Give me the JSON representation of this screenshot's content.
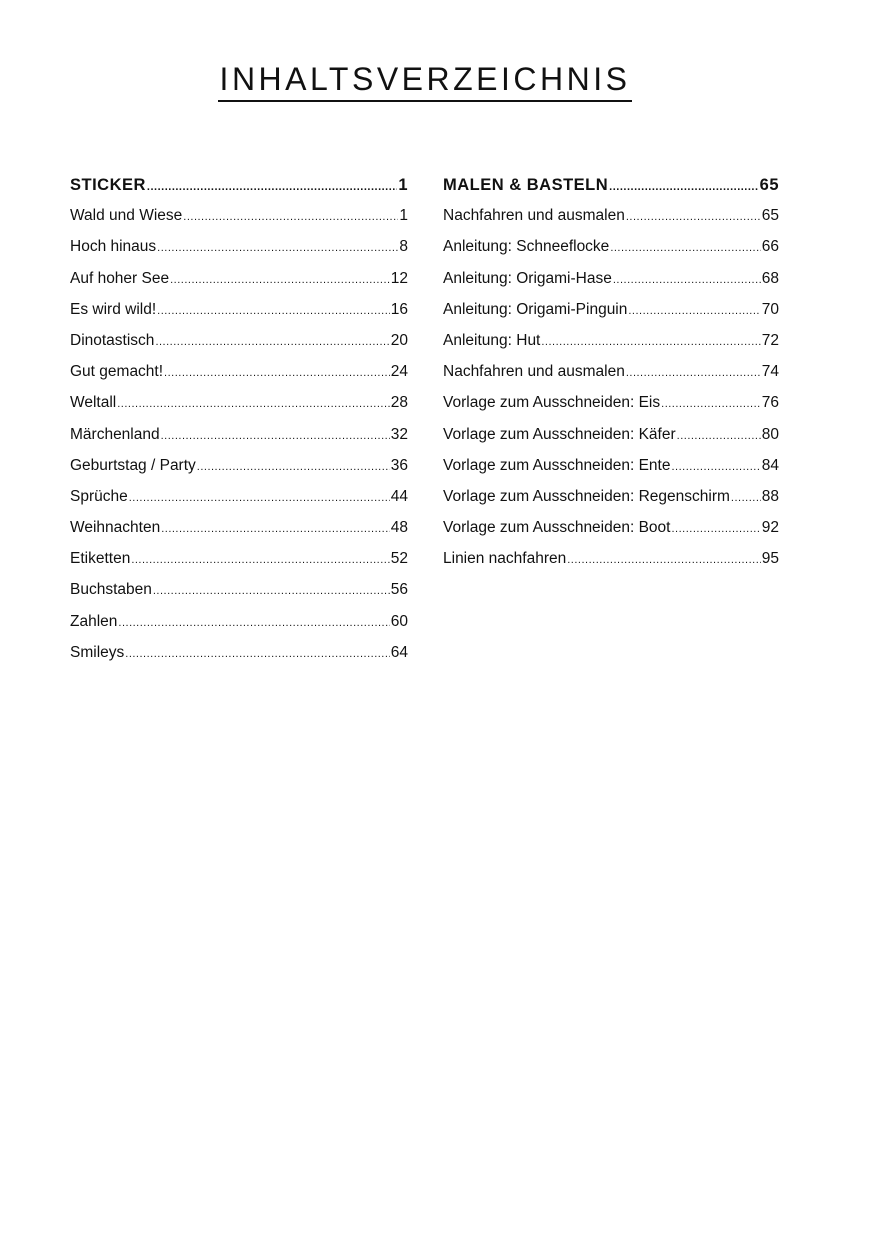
{
  "title": "INHALTSVERZEICHNIS",
  "columns": [
    {
      "heading": {
        "label": "STICKER",
        "page": "1"
      },
      "entries": [
        {
          "label": "Wald und Wiese",
          "page": "1"
        },
        {
          "label": "Hoch hinaus",
          "page": "8"
        },
        {
          "label": "Auf hoher See",
          "page": "12"
        },
        {
          "label": "Es wird wild!",
          "page": "16"
        },
        {
          "label": "Dinotastisch",
          "page": "20"
        },
        {
          "label": "Gut gemacht!",
          "page": "24"
        },
        {
          "label": "Weltall",
          "page": "28"
        },
        {
          "label": "Märchenland",
          "page": "32"
        },
        {
          "label": "Geburtstag / Party",
          "page": "36"
        },
        {
          "label": "Sprüche",
          "page": "44"
        },
        {
          "label": "Weihnachten",
          "page": "48"
        },
        {
          "label": "Etiketten",
          "page": "52"
        },
        {
          "label": "Buchstaben",
          "page": "56"
        },
        {
          "label": "Zahlen",
          "page": "60"
        },
        {
          "label": "Smileys",
          "page": "64"
        }
      ]
    },
    {
      "heading": {
        "label": "MALEN & BASTELN",
        "page": "65"
      },
      "entries": [
        {
          "label": "Nachfahren und ausmalen",
          "page": "65"
        },
        {
          "label": "Anleitung: Schneeflocke",
          "page": "66"
        },
        {
          "label": "Anleitung: Origami-Hase",
          "page": "68"
        },
        {
          "label": "Anleitung: Origami-Pinguin",
          "page": "70"
        },
        {
          "label": "Anleitung: Hut",
          "page": "72"
        },
        {
          "label": "Nachfahren und ausmalen",
          "page": "74"
        },
        {
          "label": "Vorlage zum Ausschneiden: Eis",
          "page": "76"
        },
        {
          "label": "Vorlage zum Ausschneiden: Käfer",
          "page": "80"
        },
        {
          "label": "Vorlage zum Ausschneiden: Ente",
          "page": "84"
        },
        {
          "label": "Vorlage zum Ausschneiden: Regenschirm",
          "page": "88"
        },
        {
          "label": "Vorlage zum Ausschneiden: Boot",
          "page": "92"
        },
        {
          "label": "Linien nachfahren",
          "page": "95"
        }
      ]
    }
  ]
}
